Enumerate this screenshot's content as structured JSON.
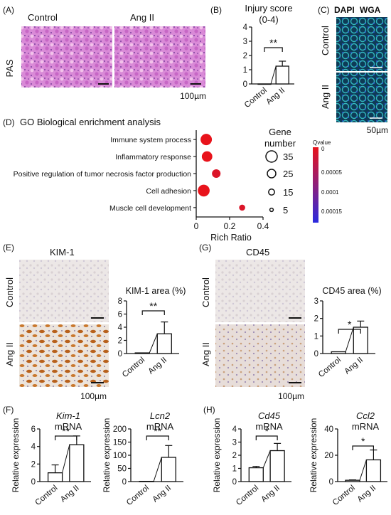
{
  "panels": {
    "A": {
      "label": "(A)",
      "stain": "PAS",
      "col_control": "Control",
      "col_ang": "Ang II",
      "scale": "100µm"
    },
    "B": {
      "label": "(B)",
      "title": "Injury score",
      "subtitle": "(0-4)",
      "sig": "**"
    },
    "C": {
      "label": "(C)",
      "legend_a": "DAPI",
      "legend_b": "WGA",
      "row_control": "Control",
      "row_ang": "Ang II",
      "scale": "50µm"
    },
    "D": {
      "label": "(D)",
      "title": "GO Biological enrichment analysis",
      "xlabel": "Rich Ratio",
      "size_legend_title_1": "Gene",
      "size_legend_title_2": "number",
      "size_legend": [
        "35",
        "25",
        "15",
        "5"
      ],
      "color_legend_title": "Qvalue",
      "color_ticks": [
        "0",
        "0.00005",
        "0.0001",
        "0.00015"
      ]
    },
    "E": {
      "label": "(E)",
      "marker": "KIM-1",
      "row_control": "Control",
      "row_ang": "Ang II",
      "scale": "100µm"
    },
    "G": {
      "label": "(G)",
      "marker": "CD45",
      "row_control": "Control",
      "row_ang": "Ang II",
      "scale": "100µm"
    },
    "F": {
      "label": "(F)"
    },
    "H": {
      "label": "(H)"
    }
  },
  "colors": {
    "dapi": "#2f3fd1",
    "wga": "#24c6c6",
    "kim1": "#d9541e",
    "cd45": "#d9541e",
    "q_high": "#e8131b",
    "q_low": "#2a2adf"
  },
  "chart_data": [
    {
      "id": "B",
      "type": "bar",
      "title": "Injury score",
      "subtitle": "(0-4)",
      "categories": [
        "Control",
        "Ang II"
      ],
      "values": [
        0,
        1.25
      ],
      "errors": [
        0,
        0.35
      ],
      "ylim": [
        0,
        4
      ],
      "yticks": [
        "0",
        "1",
        "2",
        "3",
        "4"
      ],
      "significance": "**"
    },
    {
      "id": "D",
      "type": "scatter",
      "title": "GO Biological enrichment analysis",
      "xlabel": "Rich Ratio",
      "xlim": [
        0,
        0.4
      ],
      "xticks": [
        "0",
        "0.2",
        "0.4"
      ],
      "categories": [
        "Immune system process",
        "Inflammatory response",
        "Positive regulation of tumor necrosis factor production",
        "Cell adhesion",
        "Muscle cell development"
      ],
      "x": [
        0.06,
        0.065,
        0.12,
        0.045,
        0.275
      ],
      "size": [
        35,
        30,
        20,
        38,
        10
      ],
      "qvalue": [
        0.0,
        0.0,
        1e-05,
        0.0,
        1e-05
      ]
    },
    {
      "id": "E",
      "type": "bar",
      "title": "KIM-1 area (%)",
      "categories": [
        "Control",
        "Ang II"
      ],
      "values": [
        0.1,
        3.0
      ],
      "errors": [
        0,
        1.8
      ],
      "ylim": [
        0,
        8
      ],
      "yticks": [
        "0",
        "2",
        "4",
        "6",
        "8"
      ],
      "significance": "**"
    },
    {
      "id": "G",
      "type": "bar",
      "title": "CD45 area (%)",
      "categories": [
        "Control",
        "Ang II"
      ],
      "values": [
        0.1,
        1.5
      ],
      "errors": [
        0,
        0.35
      ],
      "ylim": [
        0,
        3
      ],
      "yticks": [
        "0",
        "1",
        "2",
        "3"
      ],
      "significance": "*"
    },
    {
      "id": "F1",
      "type": "bar",
      "gene": "Kim-1",
      "unit": "mRNA",
      "ylabel": "Relative expression",
      "categories": [
        "Control",
        "Ang II"
      ],
      "values": [
        1.0,
        4.2
      ],
      "errors": [
        0.9,
        1.0
      ],
      "ylim": [
        0,
        6
      ],
      "yticks": [
        "0",
        "2",
        "4",
        "6"
      ],
      "significance": "**"
    },
    {
      "id": "F2",
      "type": "bar",
      "gene": "Lcn2",
      "unit": "mRNA",
      "ylabel": "Relative expression",
      "categories": [
        "Control",
        "Ang II"
      ],
      "values": [
        1,
        92
      ],
      "errors": [
        0,
        45
      ],
      "ylim": [
        0,
        200
      ],
      "yticks": [
        "0",
        "50",
        "100",
        "150",
        "200"
      ],
      "significance": "**"
    },
    {
      "id": "H1",
      "type": "bar",
      "gene": "Cd45",
      "unit": "mRNA",
      "ylabel": "Relative expression",
      "categories": [
        "Control",
        "Ang II"
      ],
      "values": [
        1.05,
        2.35
      ],
      "errors": [
        0.1,
        0.55
      ],
      "ylim": [
        0,
        4
      ],
      "yticks": [
        "0",
        "1",
        "2",
        "3",
        "4"
      ],
      "significance": "*"
    },
    {
      "id": "H2",
      "type": "bar",
      "gene": "Ccl2",
      "unit": "mRNA",
      "ylabel": "Relative expression",
      "categories": [
        "Control",
        "Ang II"
      ],
      "values": [
        1,
        16.5
      ],
      "errors": [
        0.3,
        7.5
      ],
      "ylim": [
        0,
        40
      ],
      "yticks": [
        "0",
        "20",
        "40"
      ],
      "significance": "*"
    }
  ]
}
